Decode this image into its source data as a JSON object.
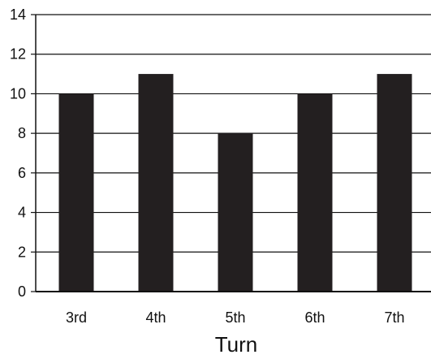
{
  "chart_data": {
    "type": "bar",
    "categories": [
      "3rd",
      "4th",
      "5th",
      "6th",
      "7th"
    ],
    "values": [
      10,
      11,
      8,
      10,
      11
    ],
    "title": "",
    "xlabel": "Turn",
    "ylabel": "",
    "ylim": [
      0,
      14
    ],
    "yticks": [
      0,
      2,
      4,
      6,
      8,
      10,
      12,
      14
    ],
    "grid": true,
    "legend": "none",
    "colors": {
      "bar": "#231f20",
      "grid": "#111111",
      "axis": "#111111",
      "background": "#ffffff"
    }
  }
}
